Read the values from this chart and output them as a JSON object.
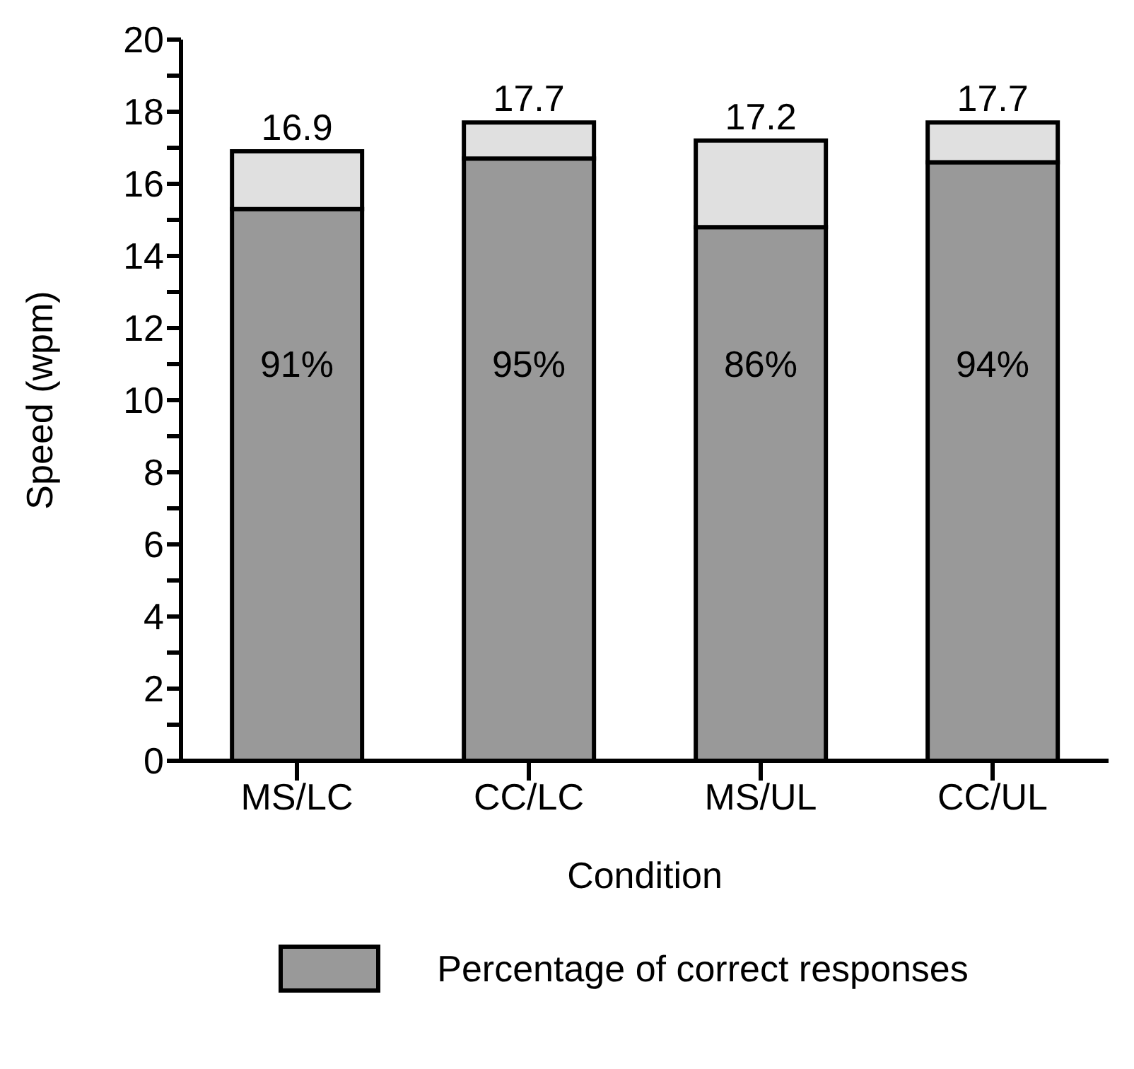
{
  "chart_data": {
    "type": "bar",
    "stacked": true,
    "xlabel": "Condition",
    "ylabel": "Speed (wpm)",
    "categories": [
      "MS/LC",
      "CC/LC",
      "MS/UL",
      "CC/UL"
    ],
    "series": [
      {
        "name": "Percentage of correct responses",
        "color": "#999999",
        "values": [
          15.3,
          16.7,
          14.8,
          16.6
        ]
      },
      {
        "color": "#e0e0e0",
        "values": [
          1.6,
          1.0,
          2.4,
          1.1
        ]
      }
    ],
    "totals": [
      "16.9",
      "17.7",
      "17.2",
      "17.7"
    ],
    "annotations": [
      "91%",
      "95%",
      "86%",
      "94%"
    ],
    "ylim": [
      0,
      20
    ],
    "yticks": [
      0,
      {
        "value": 1,
        "label": null
      },
      2,
      {
        "value": 3,
        "label": null
      },
      4,
      {
        "value": 5,
        "label": null
      },
      6,
      {
        "value": 7,
        "label": null
      },
      8,
      {
        "value": 9,
        "label": null
      },
      10,
      {
        "value": 11,
        "label": null
      },
      12,
      {
        "value": 13,
        "label": null
      },
      14,
      {
        "value": 15,
        "label": null
      },
      16,
      {
        "value": 17,
        "label": null
      },
      18,
      {
        "value": 19,
        "label": null
      },
      20
    ],
    "grid": false,
    "legend": "bottom"
  }
}
